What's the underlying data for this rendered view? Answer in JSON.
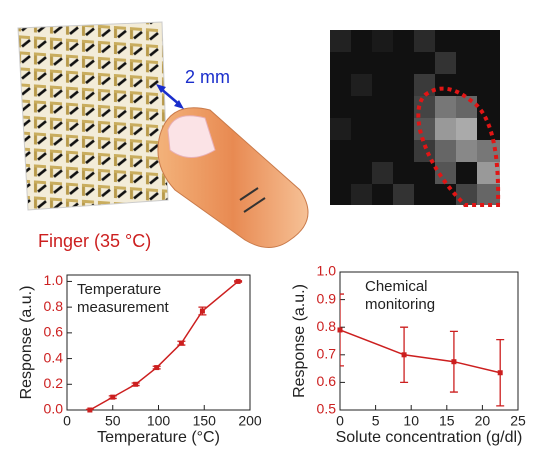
{
  "illustration": {
    "scale_label": "2 mm",
    "finger_label": "Finger (35 °C)"
  },
  "chart_data": [
    {
      "type": "line",
      "xlabel": "Temperature (°C)",
      "ylabel": "Response (a.u.)",
      "annotation": [
        "Temperature",
        "measurement"
      ],
      "series": [
        {
          "color": "#cc1f1f",
          "x": [
            25,
            50,
            75,
            98,
            125,
            148,
            187
          ],
          "values": [
            0.0,
            0.1,
            0.2,
            0.33,
            0.52,
            0.77,
            1.0
          ],
          "errors": [
            0.005,
            0.01,
            0.01,
            0.01,
            0.015,
            0.03,
            0.005
          ]
        }
      ],
      "xlim": [
        0,
        200
      ],
      "xticks": [
        0,
        50,
        100,
        150,
        200
      ],
      "ylim": [
        0,
        1.05
      ],
      "yticks": [
        {
          "value": 0,
          "label": "0.0"
        },
        0.2,
        0.4,
        0.6,
        0.8,
        {
          "value": 1,
          "label": "1.0"
        }
      ]
    },
    {
      "type": "line",
      "xlabel": "Solute concentration (g/dl)",
      "ylabel": "Response (a.u.)",
      "annotation": [
        "Chemical",
        "monitoring"
      ],
      "series": [
        {
          "color": "#cc1f1f",
          "x": [
            0,
            9,
            16,
            22.5
          ],
          "values": [
            0.79,
            0.7,
            0.675,
            0.635
          ],
          "errors": [
            0.13,
            0.1,
            0.11,
            0.12
          ]
        }
      ],
      "xlim": [
        0,
        25
      ],
      "xticks": [
        0,
        5,
        10,
        15,
        20,
        25
      ],
      "ylim": [
        0.5,
        1.0
      ],
      "yticks": [
        0.5,
        0.6,
        0.7,
        0.8,
        0.9,
        {
          "value": 1,
          "label": "1.0"
        }
      ]
    }
  ]
}
